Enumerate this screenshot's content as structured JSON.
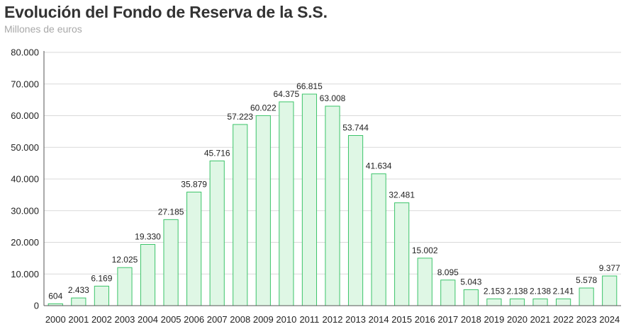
{
  "chart_data": {
    "type": "bar",
    "title": "Evolución del Fondo de Reserva de la S.S.",
    "subtitle": "Millones de euros",
    "categories": [
      "2000",
      "2001",
      "2002",
      "2003",
      "2004",
      "2005",
      "2006",
      "2007",
      "2008",
      "2009",
      "2010",
      "2011",
      "2012",
      "2013",
      "2014",
      "2015",
      "2016",
      "2017",
      "2018",
      "2019",
      "2020",
      "2021",
      "2022",
      "2023",
      "2024"
    ],
    "values": [
      604,
      2433,
      6169,
      12025,
      19330,
      27185,
      35879,
      45716,
      57223,
      60022,
      64375,
      66815,
      63008,
      53744,
      41634,
      32481,
      15002,
      8095,
      5043,
      2153,
      2138,
      2138,
      2141,
      5578,
      9377
    ],
    "value_labels": [
      "604",
      "2.433",
      "6.169",
      "12.025",
      "19.330",
      "27.185",
      "35.879",
      "45.716",
      "57.223",
      "60.022",
      "64.375",
      "66.815",
      "63.008",
      "53.744",
      "41.634",
      "32.481",
      "15.002",
      "8.095",
      "5.043",
      "2.153",
      "2.138",
      "2.138",
      "2.141",
      "5.578",
      "9.377"
    ],
    "ylim": [
      0,
      80000
    ],
    "yticks": [
      0,
      10000,
      20000,
      30000,
      40000,
      50000,
      60000,
      70000,
      80000
    ],
    "ytick_labels": [
      "0",
      "10.000",
      "20.000",
      "30.000",
      "40.000",
      "50.000",
      "60.000",
      "70.000",
      "80.000"
    ],
    "xlabel": "",
    "ylabel": "",
    "grid": true,
    "colors": {
      "bar_fill": "#dff7e5",
      "bar_stroke": "#3cc46a"
    }
  }
}
